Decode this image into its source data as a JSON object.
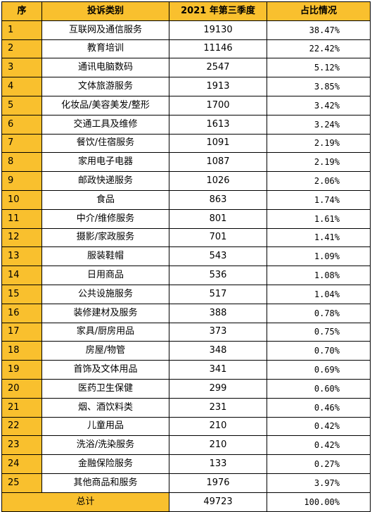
{
  "header": {
    "col_index": "序",
    "col_category": "投诉类别",
    "col_count": "2021 年第三季度",
    "col_share": "占比情况"
  },
  "rows": [
    {
      "index": "1",
      "category": "互联网及通信服务",
      "count": "19130",
      "share": "38.47%"
    },
    {
      "index": "2",
      "category": "教育培训",
      "count": "11146",
      "share": "22.42%"
    },
    {
      "index": "3",
      "category": "通讯电脑数码",
      "count": "2547",
      "share": "5.12%"
    },
    {
      "index": "4",
      "category": "文体旅游服务",
      "count": "1913",
      "share": "3.85%"
    },
    {
      "index": "5",
      "category": "化妆品/美容美发/整形",
      "count": "1700",
      "share": "3.42%"
    },
    {
      "index": "6",
      "category": "交通工具及维修",
      "count": "1613",
      "share": "3.24%"
    },
    {
      "index": "7",
      "category": "餐饮/住宿服务",
      "count": "1091",
      "share": "2.19%"
    },
    {
      "index": "8",
      "category": "家用电子电器",
      "count": "1087",
      "share": "2.19%"
    },
    {
      "index": "9",
      "category": "邮政快递服务",
      "count": "1026",
      "share": "2.06%"
    },
    {
      "index": "10",
      "category": "食品",
      "count": "863",
      "share": "1.74%"
    },
    {
      "index": "11",
      "category": "中介/维修服务",
      "count": "801",
      "share": "1.61%"
    },
    {
      "index": "12",
      "category": "摄影/家政服务",
      "count": "701",
      "share": "1.41%"
    },
    {
      "index": "13",
      "category": "服装鞋帽",
      "count": "543",
      "share": "1.09%"
    },
    {
      "index": "14",
      "category": "日用商品",
      "count": "536",
      "share": "1.08%"
    },
    {
      "index": "15",
      "category": "公共设施服务",
      "count": "517",
      "share": "1.04%"
    },
    {
      "index": "16",
      "category": "装修建材及服务",
      "count": "388",
      "share": "0.78%"
    },
    {
      "index": "17",
      "category": "家具/厨房用品",
      "count": "373",
      "share": "0.75%"
    },
    {
      "index": "18",
      "category": "房屋/物管",
      "count": "348",
      "share": "0.70%"
    },
    {
      "index": "19",
      "category": "首饰及文体用品",
      "count": "341",
      "share": "0.69%"
    },
    {
      "index": "20",
      "category": "医药卫生保健",
      "count": "299",
      "share": "0.60%"
    },
    {
      "index": "21",
      "category": "烟、酒饮料类",
      "count": "231",
      "share": "0.46%"
    },
    {
      "index": "22",
      "category": "儿童用品",
      "count": "210",
      "share": "0.42%"
    },
    {
      "index": "23",
      "category": "洗浴/洗染服务",
      "count": "210",
      "share": "0.42%"
    },
    {
      "index": "24",
      "category": "金融保险服务",
      "count": "133",
      "share": "0.27%"
    },
    {
      "index": "25",
      "category": "其他商品和服务",
      "count": "1976",
      "share": "3.97%"
    }
  ],
  "total": {
    "label": "总计",
    "count": "49723",
    "share": "100.00%"
  },
  "colors": {
    "highlight": "#F9C02E",
    "border": "#000000",
    "background": "#FFFFFF"
  }
}
